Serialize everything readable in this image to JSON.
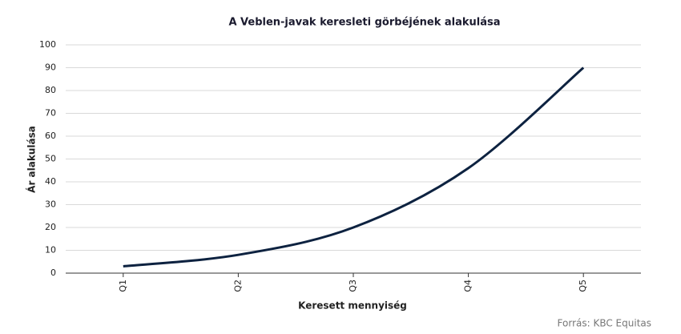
{
  "chart_data": {
    "type": "line",
    "title": "A Veblen-javak keresleti görbéjének alakulása",
    "xlabel": "Keresett mennyiség",
    "ylabel": "Ár alakulása",
    "source": "Forrás: KBC Equitas",
    "categories": [
      "Q1",
      "Q2",
      "Q3",
      "Q4",
      "Q5"
    ],
    "series": [
      {
        "name": "Ár",
        "color": "#0d2240",
        "values": [
          3,
          8,
          20,
          46,
          90
        ]
      }
    ],
    "ylim": [
      0,
      100
    ],
    "yticks": [
      0,
      10,
      20,
      30,
      40,
      50,
      60,
      70,
      80,
      90,
      100
    ],
    "grid": true,
    "smooth": true
  }
}
